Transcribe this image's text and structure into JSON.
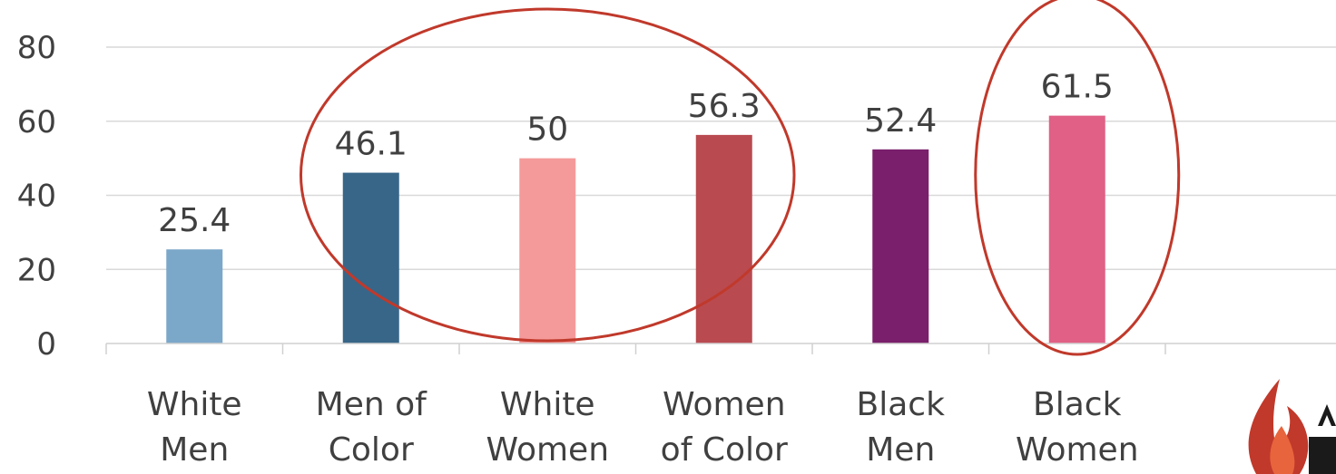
{
  "chart_data": {
    "type": "bar",
    "categories": [
      [
        "White",
        "Men"
      ],
      [
        "Men of",
        "Color"
      ],
      [
        "White",
        "Women"
      ],
      [
        "Women",
        "of Color"
      ],
      [
        "Black",
        "Men"
      ],
      [
        "Black",
        "Women"
      ]
    ],
    "values": [
      25.4,
      46.1,
      50,
      56.3,
      52.4,
      61.5
    ],
    "value_labels": [
      "25.4",
      "46.1",
      "50",
      "56.3",
      "52.4",
      "61.5"
    ],
    "bar_colors": [
      "#7ba7c9",
      "#376688",
      "#f59a9a",
      "#b94a50",
      "#7a1f6b",
      "#e06086"
    ],
    "yticks": [
      "0",
      "20",
      "40",
      "60",
      "80"
    ],
    "ylim": [
      0,
      80
    ],
    "grid": true,
    "legend": "none",
    "title": "",
    "xlabel": "",
    "ylabel": "",
    "highlight_color": "#c0392b",
    "highlighted_groups": [
      [
        1,
        2,
        3
      ],
      [
        5
      ]
    ]
  },
  "logo": {
    "icon": "flame-icon",
    "colors": [
      "#c0392b",
      "#1a1a1a"
    ]
  }
}
